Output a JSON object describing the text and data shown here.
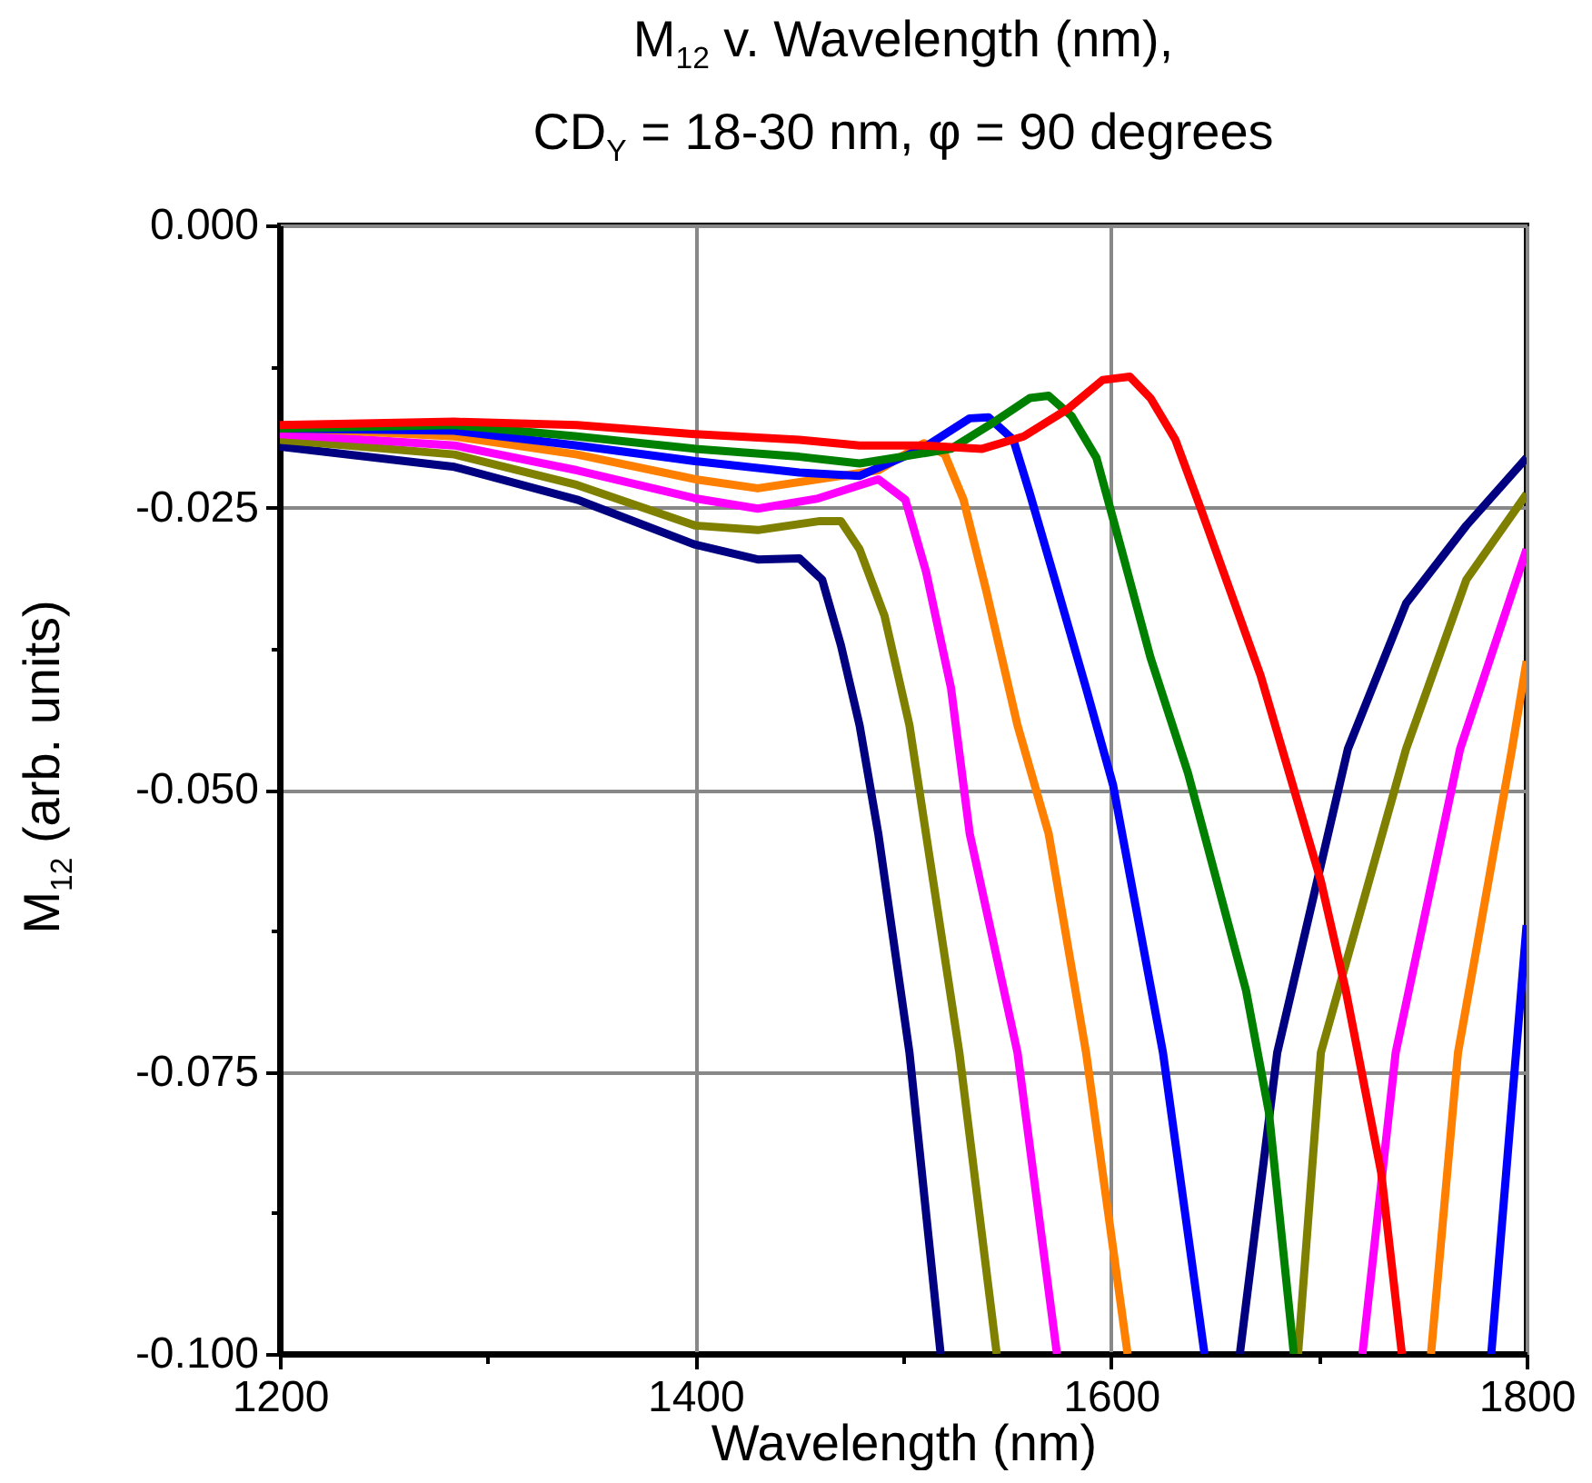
{
  "chart_data": {
    "type": "line",
    "title": "M$_{12}$ v. Wavelength (nm),",
    "subtitle": "CD$_{Y}$ = 18-30 nm, φ = 90 degrees",
    "xlabel": "Wavelength (nm)",
    "ylabel": "M$_{12}$ (arb. units)",
    "xlim": [
      1200,
      1800
    ],
    "ylim": [
      -0.1,
      0
    ],
    "xticks": [
      1200,
      {
        "value": 1300,
        "label": null
      },
      1400,
      {
        "value": 1500,
        "label": null
      },
      1600,
      {
        "value": 1700,
        "label": null
      },
      1800
    ],
    "yticks": [
      {
        "value": -0.1,
        "label": "-0.100"
      },
      {
        "value": -0.0875,
        "label": null
      },
      -0.075,
      {
        "value": -0.0625,
        "label": null
      },
      {
        "value": -0.05,
        "label": "-0.050"
      },
      {
        "value": -0.0375,
        "label": null
      },
      -0.025,
      {
        "value": -0.0125,
        "label": null
      },
      {
        "value": 0,
        "label": "0.000"
      }
    ],
    "grid": true,
    "marker": "none",
    "line_style": "solid",
    "series": [
      {
        "color": "#000080",
        "x": [
          1200,
          1284,
          1343,
          1400,
          1430,
          1450,
          1461,
          1470,
          1479,
          1488,
          1503,
          1518,
          1600,
          1662,
          1680,
          1714,
          1742,
          1771,
          1800
        ],
        "values": [
          -0.0196,
          -0.0214,
          -0.0243,
          -0.0283,
          -0.0296,
          -0.0295,
          -0.0314,
          -0.0372,
          -0.0443,
          -0.0539,
          -0.0733,
          -0.1,
          null,
          -0.1,
          -0.0733,
          -0.0464,
          -0.0335,
          -0.0266,
          -0.0206
        ]
      },
      {
        "color": "#808000",
        "x": [
          1200,
          1284,
          1343,
          1400,
          1430,
          1460,
          1470,
          1479,
          1491,
          1503,
          1527,
          1545,
          1620,
          1690,
          1701,
          1742,
          1771,
          1800
        ],
        "values": [
          -0.019,
          -0.0203,
          -0.023,
          -0.0266,
          -0.027,
          -0.0262,
          -0.0262,
          -0.0287,
          -0.0346,
          -0.0443,
          -0.0733,
          -0.1,
          null,
          -0.1,
          -0.0733,
          -0.0464,
          -0.0314,
          -0.0238
        ]
      },
      {
        "color": "#ff00ff",
        "x": [
          1200,
          1284,
          1343,
          1400,
          1430,
          1459,
          1488,
          1501,
          1511,
          1523,
          1532,
          1555,
          1574,
          1650,
          1721,
          1737,
          1768,
          1800
        ],
        "values": [
          -0.0185,
          -0.0195,
          -0.0217,
          -0.0242,
          -0.0251,
          -0.0242,
          -0.0225,
          -0.0243,
          -0.0307,
          -0.041,
          -0.0539,
          -0.0733,
          -0.1,
          null,
          -0.1,
          -0.0733,
          -0.0464,
          -0.0287
        ]
      },
      {
        "color": "#ff8000",
        "x": [
          1200,
          1284,
          1343,
          1400,
          1430,
          1488,
          1510,
          1520,
          1529,
          1540,
          1555,
          1570,
          1588,
          1608,
          1680,
          1754,
          1767,
          1793,
          1800
        ],
        "values": [
          -0.0179,
          -0.0187,
          -0.0203,
          -0.0225,
          -0.0233,
          -0.0217,
          -0.0193,
          -0.0203,
          -0.0243,
          -0.0324,
          -0.0443,
          -0.0539,
          -0.0733,
          -0.1,
          null,
          -0.1,
          -0.0733,
          -0.0464,
          -0.0386
        ]
      },
      {
        "color": "#0000ff",
        "x": [
          1200,
          1284,
          1343,
          1400,
          1450,
          1479,
          1509,
          1532,
          1541,
          1553,
          1561,
          1573,
          1588,
          1601,
          1625,
          1645,
          1720,
          1783,
          1800
        ],
        "values": [
          -0.018,
          -0.0182,
          -0.0195,
          -0.0209,
          -0.0219,
          -0.0222,
          -0.0198,
          -0.0171,
          -0.017,
          -0.019,
          -0.0238,
          -0.0314,
          -0.041,
          -0.0496,
          -0.0733,
          -0.1,
          null,
          -0.1,
          -0.062
        ]
      },
      {
        "color": "#008000",
        "x": [
          1200,
          1284,
          1343,
          1400,
          1450,
          1479,
          1523,
          1544,
          1561,
          1570,
          1581,
          1593,
          1605,
          1619,
          1637,
          1665,
          1676,
          1688
        ],
        "values": [
          -0.018,
          -0.0177,
          -0.0187,
          -0.0198,
          -0.0205,
          -0.0211,
          -0.0198,
          -0.0174,
          -0.0153,
          -0.0151,
          -0.0169,
          -0.0206,
          -0.0287,
          -0.0383,
          -0.0485,
          -0.0678,
          -0.0786,
          -0.1
        ]
      },
      {
        "color": "#ff0000",
        "x": [
          1200,
          1284,
          1343,
          1400,
          1450,
          1479,
          1509,
          1538,
          1558,
          1579,
          1596,
          1609,
          1619,
          1631,
          1643,
          1672,
          1701,
          1713,
          1730,
          1740
        ],
        "values": [
          -0.0177,
          -0.0174,
          -0.0177,
          -0.0185,
          -0.019,
          -0.0195,
          -0.0195,
          -0.0198,
          -0.0187,
          -0.0163,
          -0.0137,
          -0.0134,
          -0.0153,
          -0.019,
          -0.025,
          -0.0399,
          -0.0581,
          -0.0678,
          -0.0839,
          -0.1
        ]
      }
    ]
  }
}
